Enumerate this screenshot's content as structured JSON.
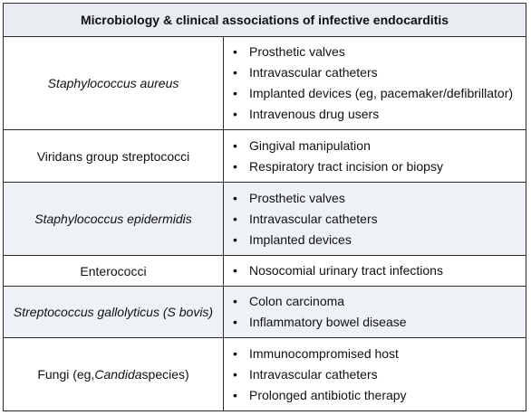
{
  "title": "Microbiology & clinical associations of infective endocarditis",
  "rows": [
    {
      "organism": "Staphylococcus aureus",
      "italic": true,
      "associations": [
        "Prosthetic valves",
        "Intravascular catheters",
        "Implanted devices (eg, pacemaker/defibrillator)",
        "Intravenous drug users"
      ]
    },
    {
      "organism": "Viridans group streptococci",
      "italic": false,
      "associations": [
        "Gingival manipulation",
        "Respiratory tract incision or biopsy"
      ]
    },
    {
      "organism": "Staphylococcus epidermidis",
      "italic": true,
      "associations": [
        "Prosthetic valves",
        "Intravascular catheters",
        "Implanted devices"
      ]
    },
    {
      "organism": "Enterococci",
      "italic": false,
      "associations": [
        "Nosocomial urinary tract infections"
      ]
    },
    {
      "organism": "Streptococcus gallolyticus (S bovis)",
      "italic": true,
      "associations": [
        "Colon carcinoma",
        "Inflammatory bowel disease"
      ]
    },
    {
      "organism_parts": [
        "Fungi (eg, ",
        "Candida",
        " species)"
      ],
      "associations": [
        "Immunocompromised host",
        "Intravascular catheters",
        "Prolonged antibiotic therapy"
      ]
    }
  ]
}
